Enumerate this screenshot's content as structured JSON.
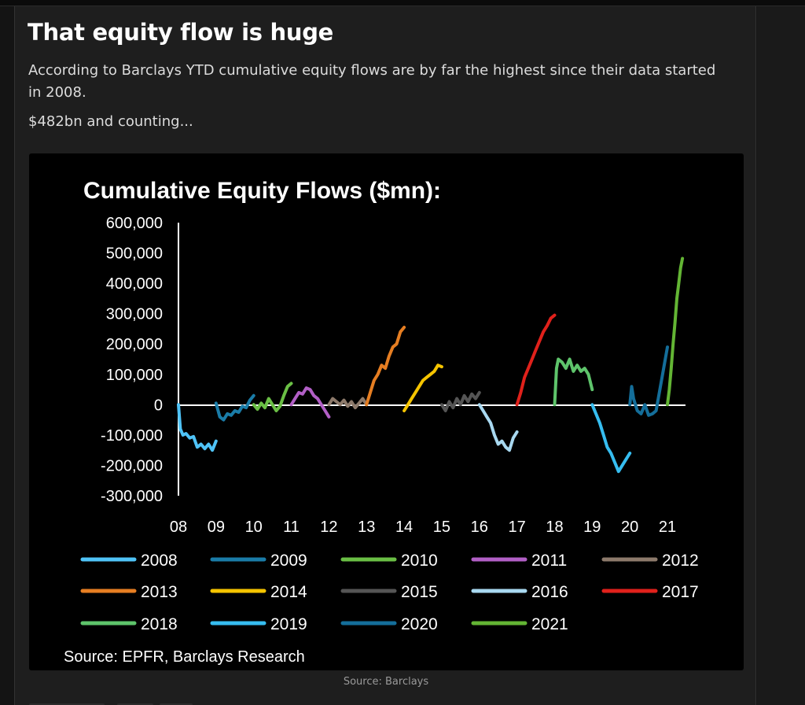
{
  "article": {
    "headline": "That equity flow is huge",
    "lede": "According to Barclays YTD cumulative equity flows are by far the highest since their data started in 2008.",
    "note": "$482bn and counting...",
    "caption": "Source: Barclays"
  },
  "chart_data": {
    "type": "line",
    "title": "Cumulative Equity Flows ($mn):",
    "source": "Source: EPFR, Barclays Research",
    "xlabel": "",
    "ylabel": "",
    "ylim": [
      -300000,
      600000
    ],
    "yticks": [
      600000,
      500000,
      400000,
      300000,
      200000,
      100000,
      0,
      -100000,
      -200000,
      -300000
    ],
    "ytick_labels": [
      "600,000",
      "500,000",
      "400,000",
      "300,000",
      "200,000",
      "100,000",
      "0",
      "-100,000",
      "-200,000",
      "-300,000"
    ],
    "xlim": [
      2008,
      2021.5
    ],
    "xticks": [
      2008,
      2009,
      2010,
      2011,
      2012,
      2013,
      2014,
      2015,
      2016,
      2017,
      2018,
      2019,
      2020,
      2021
    ],
    "xtick_labels": [
      "08",
      "09",
      "10",
      "11",
      "12",
      "13",
      "14",
      "15",
      "16",
      "17",
      "18",
      "19",
      "20",
      "21"
    ],
    "grid": false,
    "legend_position": "bottom",
    "series": [
      {
        "name": "2008",
        "color": "#4fc3f7",
        "x": [
          2008.0,
          2008.05,
          2008.12,
          2008.2,
          2008.3,
          2008.4,
          2008.5,
          2008.6,
          2008.7,
          2008.8,
          2008.9,
          2009.0
        ],
        "y": [
          0,
          -80000,
          -100000,
          -95000,
          -110000,
          -105000,
          -140000,
          -130000,
          -145000,
          -130000,
          -150000,
          -120000
        ]
      },
      {
        "name": "2009",
        "color": "#1a7ca8",
        "x": [
          2009.0,
          2009.1,
          2009.2,
          2009.3,
          2009.4,
          2009.5,
          2009.6,
          2009.7,
          2009.8,
          2009.9,
          2010.0
        ],
        "y": [
          5000,
          -40000,
          -50000,
          -30000,
          -35000,
          -20000,
          -25000,
          -5000,
          -10000,
          15000,
          30000
        ]
      },
      {
        "name": "2010",
        "color": "#6abf45",
        "x": [
          2010.0,
          2010.1,
          2010.2,
          2010.3,
          2010.4,
          2010.5,
          2010.6,
          2010.7,
          2010.8,
          2010.9,
          2011.0
        ],
        "y": [
          0,
          -15000,
          5000,
          -10000,
          20000,
          0,
          -20000,
          -5000,
          30000,
          60000,
          70000
        ]
      },
      {
        "name": "2011",
        "color": "#b25fc6",
        "x": [
          2011.0,
          2011.1,
          2011.2,
          2011.3,
          2011.4,
          2011.5,
          2011.6,
          2011.7,
          2011.8,
          2011.9,
          2012.0
        ],
        "y": [
          0,
          20000,
          40000,
          35000,
          55000,
          50000,
          30000,
          20000,
          0,
          -20000,
          -40000
        ]
      },
      {
        "name": "2012",
        "color": "#8d7a6b",
        "x": [
          2012.0,
          2012.1,
          2012.2,
          2012.3,
          2012.4,
          2012.5,
          2012.6,
          2012.7,
          2012.8,
          2012.9,
          2013.0
        ],
        "y": [
          0,
          20000,
          10000,
          0,
          15000,
          -5000,
          10000,
          -10000,
          5000,
          20000,
          0
        ]
      },
      {
        "name": "2013",
        "color": "#e67e22",
        "x": [
          2013.0,
          2013.1,
          2013.2,
          2013.3,
          2013.4,
          2013.5,
          2013.6,
          2013.7,
          2013.8,
          2013.9,
          2014.0
        ],
        "y": [
          0,
          40000,
          80000,
          100000,
          130000,
          120000,
          160000,
          190000,
          200000,
          240000,
          255000
        ]
      },
      {
        "name": "2014",
        "color": "#f5c400",
        "x": [
          2014.0,
          2014.1,
          2014.2,
          2014.3,
          2014.4,
          2014.5,
          2014.6,
          2014.7,
          2014.8,
          2014.9,
          2015.0
        ],
        "y": [
          -20000,
          0,
          20000,
          40000,
          60000,
          80000,
          90000,
          100000,
          110000,
          130000,
          125000
        ]
      },
      {
        "name": "2015",
        "color": "#555555",
        "x": [
          2015.0,
          2015.1,
          2015.2,
          2015.3,
          2015.4,
          2015.5,
          2015.6,
          2015.7,
          2015.8,
          2015.9,
          2016.0
        ],
        "y": [
          0,
          -20000,
          10000,
          -10000,
          20000,
          0,
          30000,
          10000,
          35000,
          20000,
          40000
        ]
      },
      {
        "name": "2016",
        "color": "#a8d8f0",
        "x": [
          2016.0,
          2016.1,
          2016.2,
          2016.3,
          2016.4,
          2016.5,
          2016.6,
          2016.7,
          2016.8,
          2016.9,
          2017.0
        ],
        "y": [
          0,
          -20000,
          -40000,
          -60000,
          -100000,
          -130000,
          -120000,
          -140000,
          -150000,
          -110000,
          -90000
        ]
      },
      {
        "name": "2017",
        "color": "#e0211b",
        "x": [
          2017.0,
          2017.1,
          2017.2,
          2017.3,
          2017.4,
          2017.5,
          2017.6,
          2017.7,
          2017.8,
          2017.9,
          2018.0
        ],
        "y": [
          0,
          40000,
          90000,
          120000,
          150000,
          180000,
          210000,
          240000,
          260000,
          285000,
          295000
        ]
      },
      {
        "name": "2018",
        "color": "#5ec46b",
        "x": [
          2018.0,
          2018.05,
          2018.1,
          2018.2,
          2018.3,
          2018.4,
          2018.5,
          2018.6,
          2018.7,
          2018.8,
          2018.9,
          2019.0
        ],
        "y": [
          0,
          120000,
          150000,
          140000,
          120000,
          150000,
          110000,
          130000,
          110000,
          120000,
          100000,
          50000
        ]
      },
      {
        "name": "2019",
        "color": "#36bdf0",
        "x": [
          2019.0,
          2019.1,
          2019.2,
          2019.3,
          2019.4,
          2019.5,
          2019.6,
          2019.7,
          2019.8,
          2019.9,
          2020.0
        ],
        "y": [
          0,
          -30000,
          -60000,
          -100000,
          -140000,
          -160000,
          -190000,
          -220000,
          -200000,
          -180000,
          -160000
        ]
      },
      {
        "name": "2020",
        "color": "#146e9a",
        "x": [
          2020.0,
          2020.05,
          2020.1,
          2020.2,
          2020.3,
          2020.4,
          2020.5,
          2020.6,
          2020.7,
          2020.8,
          2020.9,
          2021.0
        ],
        "y": [
          0,
          60000,
          20000,
          -20000,
          -30000,
          0,
          -35000,
          -30000,
          -20000,
          50000,
          120000,
          190000
        ]
      },
      {
        "name": "2021",
        "color": "#63b534",
        "x": [
          2021.0,
          2021.05,
          2021.1,
          2021.15,
          2021.2,
          2021.25,
          2021.3,
          2021.35,
          2021.4
        ],
        "y": [
          0,
          50000,
          120000,
          200000,
          270000,
          350000,
          400000,
          450000,
          482000
        ]
      }
    ]
  }
}
